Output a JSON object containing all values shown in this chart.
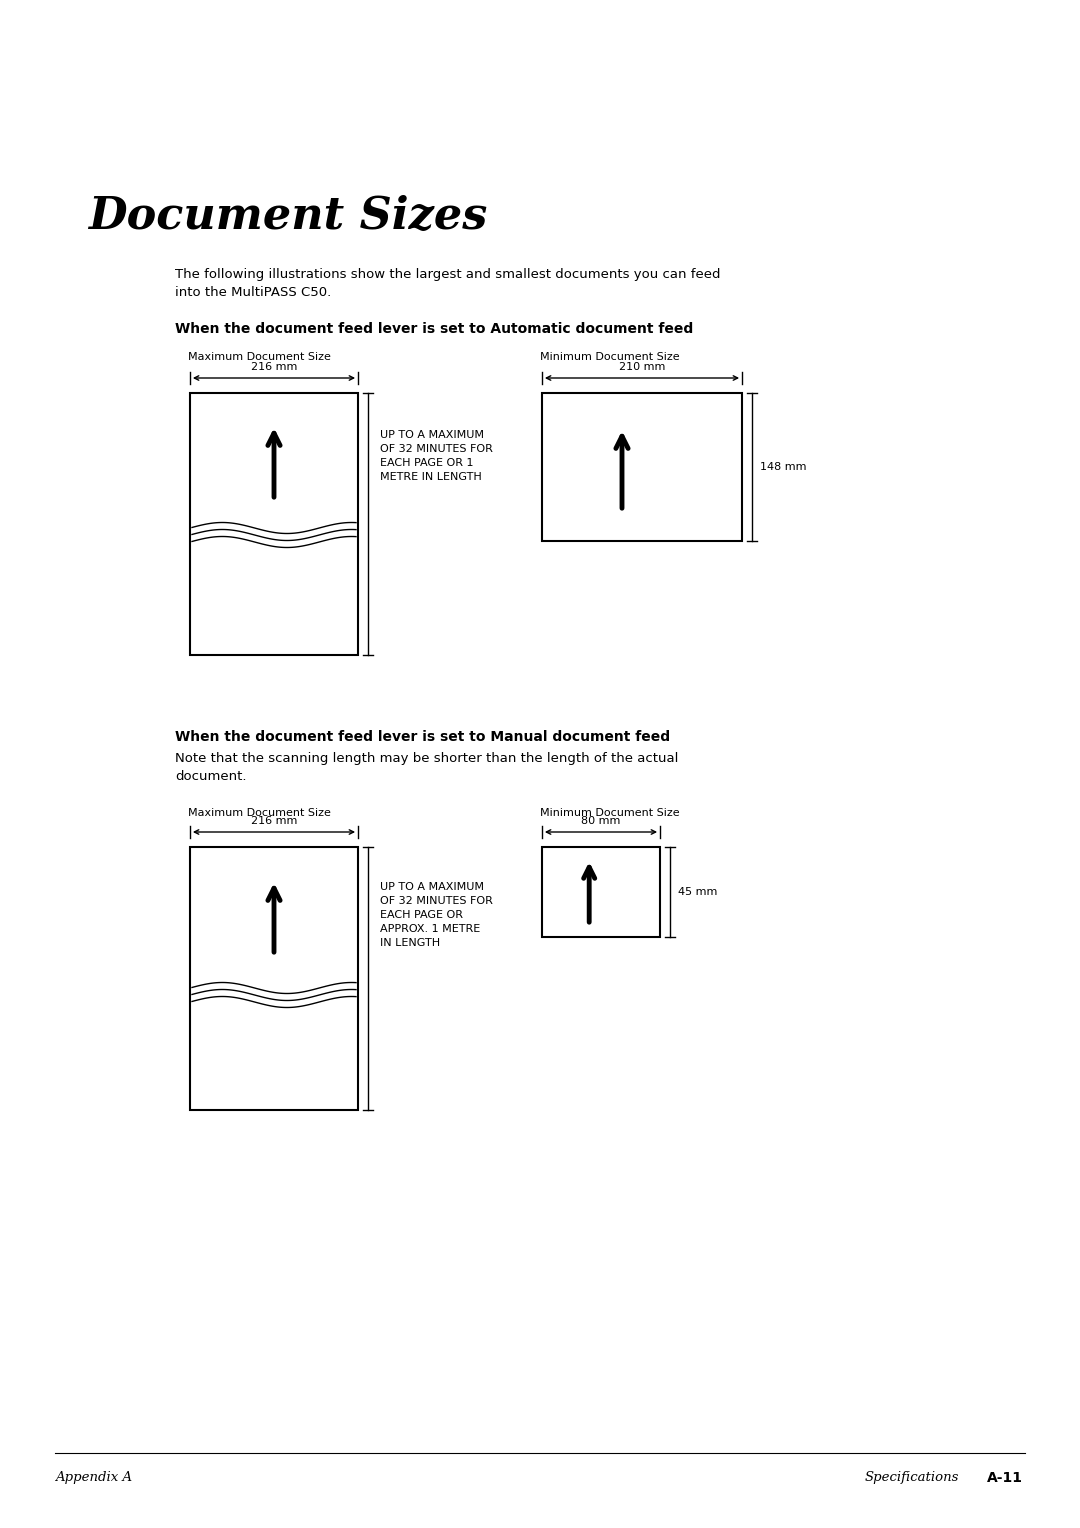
{
  "title": "Document Sizes",
  "intro_text": "The following illustrations show the largest and smallest documents you can feed\ninto the MultiPASS C50.",
  "section1_heading": "When the document feed lever is set to Automatic document feed",
  "section2_heading": "When the document feed lever is set to Manual document feed",
  "section2_note": "Note that the scanning length may be shorter than the length of the actual\ndocument.",
  "max_label": "Maximum Document Size",
  "min_label": "Minimum Document Size",
  "auto_max_width_label": "216 mm",
  "auto_min_width_label": "210 mm",
  "auto_min_height_label": "148 mm",
  "auto_max_note": "UP TO A MAXIMUM\nOF 32 MINUTES FOR\nEACH PAGE OR 1\nMETRE IN LENGTH",
  "manual_max_width_label": "216 mm",
  "manual_min_width_label": "80 mm",
  "manual_min_height_label": "45 mm",
  "manual_max_note": "UP TO A MAXIMUM\nOF 32 MINUTES FOR\nEACH PAGE OR\nAPPROX. 1 METRE\nIN LENGTH",
  "footer_left": "Appendix A",
  "footer_right": "Specifications",
  "footer_page": "A-11",
  "bg_color": "#ffffff",
  "text_color": "#000000"
}
